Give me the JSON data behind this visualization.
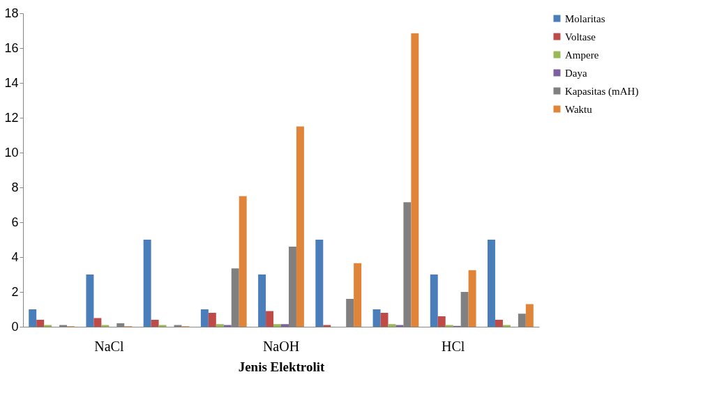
{
  "chart_data": {
    "type": "bar",
    "xlabel": "Jenis Elektrolit",
    "categories": [
      null,
      "NaCl",
      null,
      null,
      "NaOH",
      null,
      null,
      "HCl",
      null
    ],
    "series": [
      {
        "name": "Molaritas",
        "color": "#4a7ebb",
        "values": [
          1,
          3,
          5,
          1,
          3,
          5,
          1,
          3,
          5
        ]
      },
      {
        "name": "Voltase",
        "color": "#be4b48",
        "values": [
          0.4,
          0.5,
          0.4,
          0.8,
          0.9,
          0.1,
          0.8,
          0.6,
          0.4
        ]
      },
      {
        "name": "Ampere",
        "color": "#98b954",
        "values": [
          0.1,
          0.1,
          0.1,
          0.15,
          0.15,
          null,
          0.15,
          0.1,
          0.1
        ]
      },
      {
        "name": "Daya",
        "color": "#7d60a0",
        "values": [
          null,
          null,
          null,
          0.1,
          0.15,
          null,
          0.1,
          0.05,
          null
        ]
      },
      {
        "name": "Kapasitas (mAH)",
        "color": "#808080",
        "values": [
          0.1,
          0.2,
          0.1,
          3.35,
          4.6,
          1.6,
          7.15,
          2,
          0.75
        ]
      },
      {
        "name": "Waktu",
        "color": "#e0843a",
        "values": [
          0.03,
          0.03,
          0.03,
          7.5,
          11.5,
          3.65,
          16.85,
          3.25,
          1.3
        ]
      }
    ],
    "ylim": [
      0,
      18
    ],
    "yticks": [
      0,
      2,
      4,
      6,
      8,
      10,
      12,
      14,
      16,
      18
    ],
    "grid": false,
    "legend": "right"
  }
}
